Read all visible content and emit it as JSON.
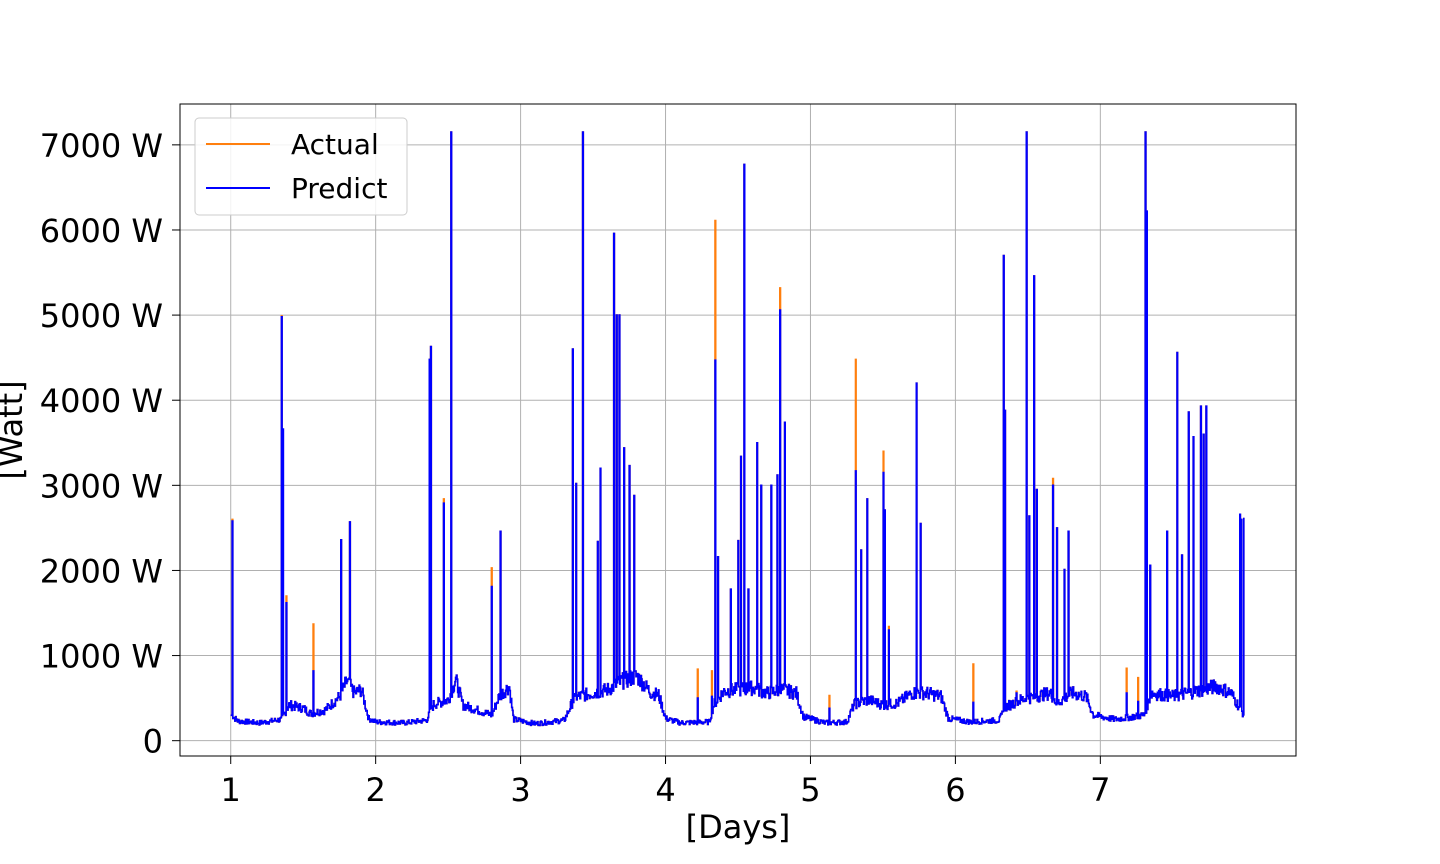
{
  "chart_data": {
    "type": "line",
    "title": "",
    "xlabel": "[Days]",
    "ylabel": "[Watt]",
    "xlim": [
      0.65,
      8.35
    ],
    "ylim": [
      -180,
      7480
    ],
    "x_ticks": [
      1,
      2,
      3,
      4,
      5,
      6,
      7
    ],
    "x_tick_labels": [
      "1",
      "2",
      "3",
      "4",
      "5",
      "6",
      "7"
    ],
    "y_ticks": [
      0,
      1000,
      2000,
      3000,
      4000,
      5000,
      6000,
      7000
    ],
    "y_tick_labels": [
      "0",
      "1000 W",
      "2000 W",
      "3000 W",
      "4000 W",
      "5000 W",
      "6000 W",
      "7000 W"
    ],
    "grid": true,
    "legend": "top-left",
    "x_range": [
      1.0,
      7.99
    ],
    "baseline": [
      [
        1.0,
        300
      ],
      [
        1.05,
        230
      ],
      [
        1.2,
        210
      ],
      [
        1.35,
        250
      ],
      [
        1.4,
        420
      ],
      [
        1.5,
        380
      ],
      [
        1.55,
        320
      ],
      [
        1.65,
        360
      ],
      [
        1.75,
        520
      ],
      [
        1.8,
        700
      ],
      [
        1.85,
        560
      ],
      [
        1.9,
        600
      ],
      [
        1.95,
        260
      ],
      [
        2.0,
        220
      ],
      [
        2.2,
        210
      ],
      [
        2.35,
        240
      ],
      [
        2.4,
        430
      ],
      [
        2.5,
        480
      ],
      [
        2.55,
        720
      ],
      [
        2.6,
        420
      ],
      [
        2.7,
        360
      ],
      [
        2.8,
        300
      ],
      [
        2.85,
        520
      ],
      [
        2.92,
        640
      ],
      [
        2.95,
        250
      ],
      [
        3.1,
        200
      ],
      [
        3.3,
        240
      ],
      [
        3.36,
        470
      ],
      [
        3.4,
        520
      ],
      [
        3.5,
        560
      ],
      [
        3.6,
        600
      ],
      [
        3.7,
        700
      ],
      [
        3.8,
        760
      ],
      [
        3.9,
        560
      ],
      [
        3.95,
        540
      ],
      [
        4.0,
        260
      ],
      [
        4.1,
        210
      ],
      [
        4.3,
        220
      ],
      [
        4.33,
        420
      ],
      [
        4.4,
        580
      ],
      [
        4.5,
        600
      ],
      [
        4.6,
        620
      ],
      [
        4.7,
        560
      ],
      [
        4.8,
        600
      ],
      [
        4.9,
        560
      ],
      [
        4.95,
        280
      ],
      [
        5.1,
        210
      ],
      [
        5.25,
        220
      ],
      [
        5.3,
        430
      ],
      [
        5.4,
        480
      ],
      [
        5.5,
        420
      ],
      [
        5.6,
        440
      ],
      [
        5.7,
        560
      ],
      [
        5.8,
        560
      ],
      [
        5.9,
        520
      ],
      [
        5.95,
        260
      ],
      [
        6.1,
        220
      ],
      [
        6.3,
        240
      ],
      [
        6.35,
        400
      ],
      [
        6.45,
        480
      ],
      [
        6.55,
        520
      ],
      [
        6.65,
        560
      ],
      [
        6.7,
        440
      ],
      [
        6.8,
        560
      ],
      [
        6.9,
        520
      ],
      [
        6.95,
        300
      ],
      [
        7.1,
        250
      ],
      [
        7.3,
        300
      ],
      [
        7.35,
        560
      ],
      [
        7.5,
        520
      ],
      [
        7.6,
        560
      ],
      [
        7.7,
        600
      ],
      [
        7.8,
        640
      ],
      [
        7.9,
        560
      ],
      [
        7.99,
        300
      ]
    ],
    "series": [
      {
        "name": "Actual",
        "color": "#ff7f0e",
        "spikes": [
          [
            1.01,
            2600
          ],
          [
            1.35,
            4990
          ],
          [
            1.38,
            1700
          ],
          [
            1.57,
            1370
          ],
          [
            1.76,
            2360
          ],
          [
            1.82,
            2570
          ],
          [
            2.37,
            4480
          ],
          [
            2.38,
            4630
          ],
          [
            2.47,
            2840
          ],
          [
            2.52,
            7150
          ],
          [
            2.8,
            2030
          ],
          [
            2.86,
            2460
          ],
          [
            3.36,
            4600
          ],
          [
            3.38,
            3020
          ],
          [
            3.43,
            7150
          ],
          [
            3.53,
            2340
          ],
          [
            3.55,
            3200
          ],
          [
            3.64,
            5960
          ],
          [
            3.66,
            5000
          ],
          [
            3.68,
            5000
          ],
          [
            3.71,
            3440
          ],
          [
            3.75,
            3230
          ],
          [
            3.78,
            2880
          ],
          [
            4.22,
            840
          ],
          [
            4.32,
            820
          ],
          [
            4.34,
            6110
          ],
          [
            4.36,
            2160
          ],
          [
            4.45,
            1780
          ],
          [
            4.5,
            2350
          ],
          [
            4.52,
            3340
          ],
          [
            4.54,
            6770
          ],
          [
            4.57,
            1780
          ],
          [
            4.63,
            3500
          ],
          [
            4.66,
            3000
          ],
          [
            4.73,
            3000
          ],
          [
            4.77,
            3120
          ],
          [
            4.79,
            5320
          ],
          [
            4.82,
            3740
          ],
          [
            5.13,
            530
          ],
          [
            5.31,
            4480
          ],
          [
            5.35,
            2240
          ],
          [
            5.39,
            2840
          ],
          [
            5.5,
            3400
          ],
          [
            5.51,
            2710
          ],
          [
            5.54,
            1340
          ],
          [
            5.73,
            4200
          ],
          [
            5.76,
            2550
          ],
          [
            6.12,
            900
          ],
          [
            6.33,
            5700
          ],
          [
            6.34,
            3880
          ],
          [
            6.42,
            580
          ],
          [
            6.49,
            7150
          ],
          [
            6.51,
            2640
          ],
          [
            6.54,
            5460
          ],
          [
            6.56,
            2950
          ],
          [
            6.67,
            3080
          ],
          [
            6.7,
            2500
          ],
          [
            6.75,
            2010
          ],
          [
            6.78,
            2460
          ],
          [
            7.18,
            850
          ],
          [
            7.26,
            740
          ],
          [
            7.31,
            7150
          ],
          [
            7.32,
            6220
          ],
          [
            7.34,
            2060
          ],
          [
            7.46,
            2460
          ],
          [
            7.53,
            4560
          ],
          [
            7.56,
            2180
          ],
          [
            7.61,
            3860
          ],
          [
            7.64,
            3570
          ],
          [
            7.69,
            3930
          ],
          [
            7.71,
            3600
          ],
          [
            7.73,
            3930
          ],
          [
            7.96,
            2660
          ],
          [
            7.97,
            2600
          ],
          [
            7.99,
            2620
          ]
        ]
      },
      {
        "name": "Predict",
        "color": "#0000ff",
        "spikes": [
          [
            1.01,
            2580
          ],
          [
            1.35,
            4980
          ],
          [
            1.36,
            3660
          ],
          [
            1.38,
            1620
          ],
          [
            1.57,
            820
          ],
          [
            1.76,
            2360
          ],
          [
            1.82,
            2570
          ],
          [
            2.37,
            4480
          ],
          [
            2.38,
            4630
          ],
          [
            2.47,
            2790
          ],
          [
            2.52,
            7150
          ],
          [
            2.8,
            1810
          ],
          [
            2.86,
            2460
          ],
          [
            3.36,
            4600
          ],
          [
            3.38,
            3020
          ],
          [
            3.43,
            7150
          ],
          [
            3.53,
            2340
          ],
          [
            3.55,
            3200
          ],
          [
            3.64,
            5960
          ],
          [
            3.66,
            5000
          ],
          [
            3.68,
            5000
          ],
          [
            3.71,
            3440
          ],
          [
            3.75,
            3230
          ],
          [
            3.78,
            2880
          ],
          [
            4.22,
            500
          ],
          [
            4.32,
            520
          ],
          [
            4.34,
            4470
          ],
          [
            4.36,
            2160
          ],
          [
            4.45,
            1780
          ],
          [
            4.5,
            2350
          ],
          [
            4.52,
            3340
          ],
          [
            4.54,
            6770
          ],
          [
            4.57,
            1780
          ],
          [
            4.63,
            3500
          ],
          [
            4.66,
            3000
          ],
          [
            4.73,
            3000
          ],
          [
            4.77,
            3120
          ],
          [
            4.79,
            5060
          ],
          [
            4.82,
            3740
          ],
          [
            5.13,
            380
          ],
          [
            5.31,
            3170
          ],
          [
            5.35,
            2240
          ],
          [
            5.39,
            2840
          ],
          [
            5.5,
            3150
          ],
          [
            5.51,
            2710
          ],
          [
            5.54,
            1300
          ],
          [
            5.73,
            4200
          ],
          [
            5.76,
            2550
          ],
          [
            6.12,
            450
          ],
          [
            6.33,
            5700
          ],
          [
            6.34,
            3880
          ],
          [
            6.42,
            560
          ],
          [
            6.49,
            7150
          ],
          [
            6.51,
            2640
          ],
          [
            6.54,
            5460
          ],
          [
            6.56,
            2950
          ],
          [
            6.67,
            3000
          ],
          [
            6.7,
            2500
          ],
          [
            6.75,
            2010
          ],
          [
            6.78,
            2460
          ],
          [
            7.18,
            560
          ],
          [
            7.26,
            460
          ],
          [
            7.31,
            7150
          ],
          [
            7.32,
            6220
          ],
          [
            7.34,
            2060
          ],
          [
            7.46,
            2460
          ],
          [
            7.53,
            4560
          ],
          [
            7.56,
            2180
          ],
          [
            7.61,
            3860
          ],
          [
            7.64,
            3570
          ],
          [
            7.69,
            3930
          ],
          [
            7.71,
            3600
          ],
          [
            7.73,
            3930
          ],
          [
            7.96,
            2660
          ],
          [
            7.97,
            2600
          ],
          [
            7.99,
            2620
          ]
        ]
      }
    ]
  }
}
